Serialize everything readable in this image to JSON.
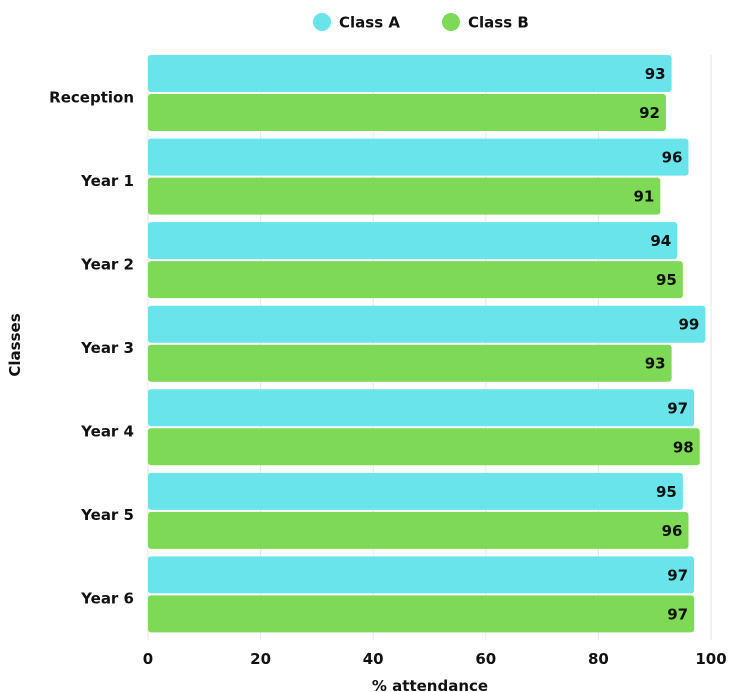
{
  "chart_data": {
    "type": "bar",
    "orientation": "horizontal",
    "categories": [
      "Reception",
      "Year 1",
      "Year 2",
      "Year 3",
      "Year 4",
      "Year 5",
      "Year 6"
    ],
    "series": [
      {
        "name": "Class A",
        "color": "#68E4EA",
        "values": [
          93,
          96,
          94,
          99,
          97,
          95,
          97
        ]
      },
      {
        "name": "Class B",
        "color": "#7ED957",
        "values": [
          92,
          91,
          95,
          93,
          98,
          96,
          97
        ]
      }
    ],
    "xlabel": "% attendance",
    "ylabel": "Classes",
    "xlim": [
      0,
      100
    ],
    "xticks": [
      0,
      20,
      40,
      60,
      80,
      100
    ],
    "grid": true,
    "legend_position": "top-center",
    "data_labels": true
  }
}
